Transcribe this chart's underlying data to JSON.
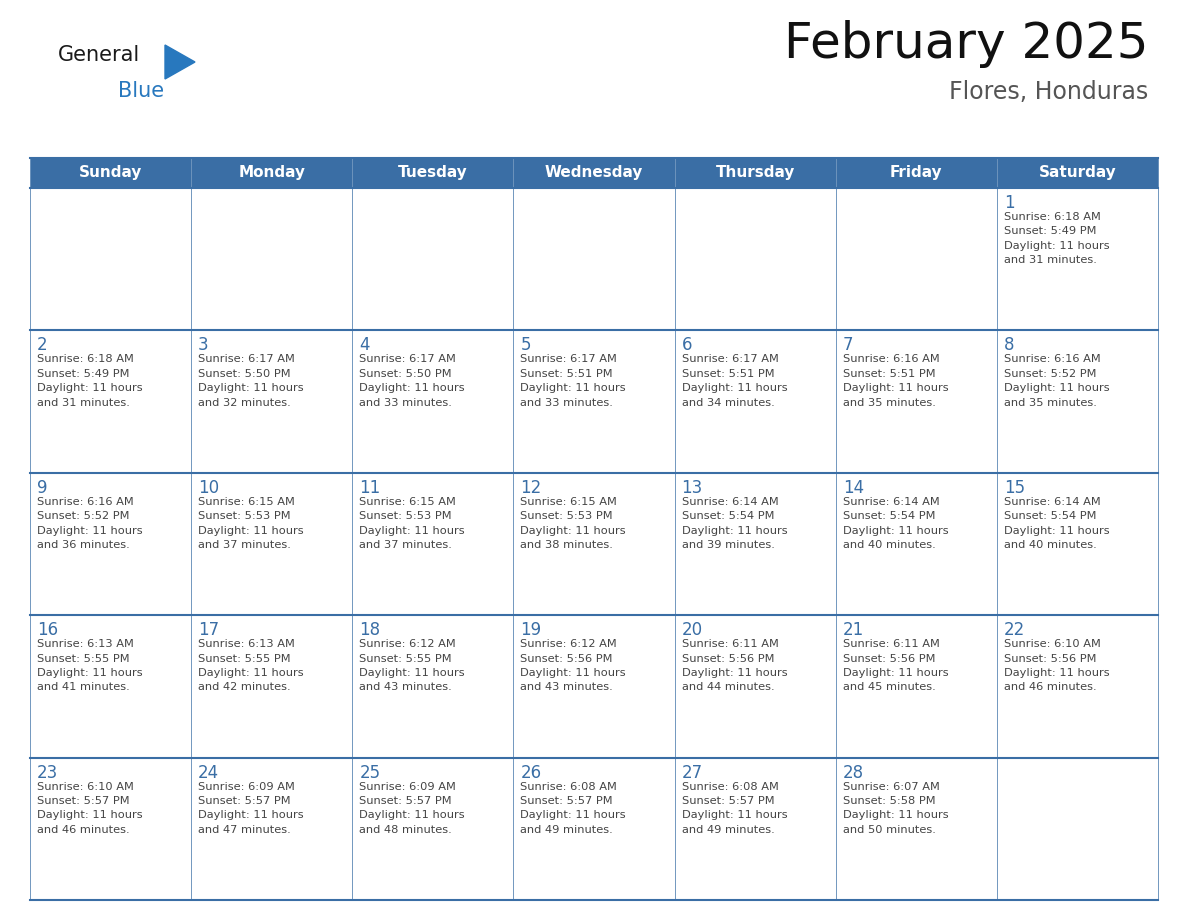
{
  "title": "February 2025",
  "subtitle": "Flores, Honduras",
  "days_of_week": [
    "Sunday",
    "Monday",
    "Tuesday",
    "Wednesday",
    "Thursday",
    "Friday",
    "Saturday"
  ],
  "header_bg": "#3A6EA5",
  "header_text_color": "#FFFFFF",
  "cell_bg": "#FFFFFF",
  "cell_border_color": "#3A6EA5",
  "day_num_color": "#3A6EA5",
  "text_color": "#444444",
  "logo_general_color": "#1a1a1a",
  "logo_blue_color": "#2878BE",
  "weeks": [
    [
      {
        "day": null,
        "info": null
      },
      {
        "day": null,
        "info": null
      },
      {
        "day": null,
        "info": null
      },
      {
        "day": null,
        "info": null
      },
      {
        "day": null,
        "info": null
      },
      {
        "day": null,
        "info": null
      },
      {
        "day": 1,
        "info": "Sunrise: 6:18 AM\nSunset: 5:49 PM\nDaylight: 11 hours\nand 31 minutes."
      }
    ],
    [
      {
        "day": 2,
        "info": "Sunrise: 6:18 AM\nSunset: 5:49 PM\nDaylight: 11 hours\nand 31 minutes."
      },
      {
        "day": 3,
        "info": "Sunrise: 6:17 AM\nSunset: 5:50 PM\nDaylight: 11 hours\nand 32 minutes."
      },
      {
        "day": 4,
        "info": "Sunrise: 6:17 AM\nSunset: 5:50 PM\nDaylight: 11 hours\nand 33 minutes."
      },
      {
        "day": 5,
        "info": "Sunrise: 6:17 AM\nSunset: 5:51 PM\nDaylight: 11 hours\nand 33 minutes."
      },
      {
        "day": 6,
        "info": "Sunrise: 6:17 AM\nSunset: 5:51 PM\nDaylight: 11 hours\nand 34 minutes."
      },
      {
        "day": 7,
        "info": "Sunrise: 6:16 AM\nSunset: 5:51 PM\nDaylight: 11 hours\nand 35 minutes."
      },
      {
        "day": 8,
        "info": "Sunrise: 6:16 AM\nSunset: 5:52 PM\nDaylight: 11 hours\nand 35 minutes."
      }
    ],
    [
      {
        "day": 9,
        "info": "Sunrise: 6:16 AM\nSunset: 5:52 PM\nDaylight: 11 hours\nand 36 minutes."
      },
      {
        "day": 10,
        "info": "Sunrise: 6:15 AM\nSunset: 5:53 PM\nDaylight: 11 hours\nand 37 minutes."
      },
      {
        "day": 11,
        "info": "Sunrise: 6:15 AM\nSunset: 5:53 PM\nDaylight: 11 hours\nand 37 minutes."
      },
      {
        "day": 12,
        "info": "Sunrise: 6:15 AM\nSunset: 5:53 PM\nDaylight: 11 hours\nand 38 minutes."
      },
      {
        "day": 13,
        "info": "Sunrise: 6:14 AM\nSunset: 5:54 PM\nDaylight: 11 hours\nand 39 minutes."
      },
      {
        "day": 14,
        "info": "Sunrise: 6:14 AM\nSunset: 5:54 PM\nDaylight: 11 hours\nand 40 minutes."
      },
      {
        "day": 15,
        "info": "Sunrise: 6:14 AM\nSunset: 5:54 PM\nDaylight: 11 hours\nand 40 minutes."
      }
    ],
    [
      {
        "day": 16,
        "info": "Sunrise: 6:13 AM\nSunset: 5:55 PM\nDaylight: 11 hours\nand 41 minutes."
      },
      {
        "day": 17,
        "info": "Sunrise: 6:13 AM\nSunset: 5:55 PM\nDaylight: 11 hours\nand 42 minutes."
      },
      {
        "day": 18,
        "info": "Sunrise: 6:12 AM\nSunset: 5:55 PM\nDaylight: 11 hours\nand 43 minutes."
      },
      {
        "day": 19,
        "info": "Sunrise: 6:12 AM\nSunset: 5:56 PM\nDaylight: 11 hours\nand 43 minutes."
      },
      {
        "day": 20,
        "info": "Sunrise: 6:11 AM\nSunset: 5:56 PM\nDaylight: 11 hours\nand 44 minutes."
      },
      {
        "day": 21,
        "info": "Sunrise: 6:11 AM\nSunset: 5:56 PM\nDaylight: 11 hours\nand 45 minutes."
      },
      {
        "day": 22,
        "info": "Sunrise: 6:10 AM\nSunset: 5:56 PM\nDaylight: 11 hours\nand 46 minutes."
      }
    ],
    [
      {
        "day": 23,
        "info": "Sunrise: 6:10 AM\nSunset: 5:57 PM\nDaylight: 11 hours\nand 46 minutes."
      },
      {
        "day": 24,
        "info": "Sunrise: 6:09 AM\nSunset: 5:57 PM\nDaylight: 11 hours\nand 47 minutes."
      },
      {
        "day": 25,
        "info": "Sunrise: 6:09 AM\nSunset: 5:57 PM\nDaylight: 11 hours\nand 48 minutes."
      },
      {
        "day": 26,
        "info": "Sunrise: 6:08 AM\nSunset: 5:57 PM\nDaylight: 11 hours\nand 49 minutes."
      },
      {
        "day": 27,
        "info": "Sunrise: 6:08 AM\nSunset: 5:57 PM\nDaylight: 11 hours\nand 49 minutes."
      },
      {
        "day": 28,
        "info": "Sunrise: 6:07 AM\nSunset: 5:58 PM\nDaylight: 11 hours\nand 50 minutes."
      },
      {
        "day": null,
        "info": null
      }
    ]
  ]
}
